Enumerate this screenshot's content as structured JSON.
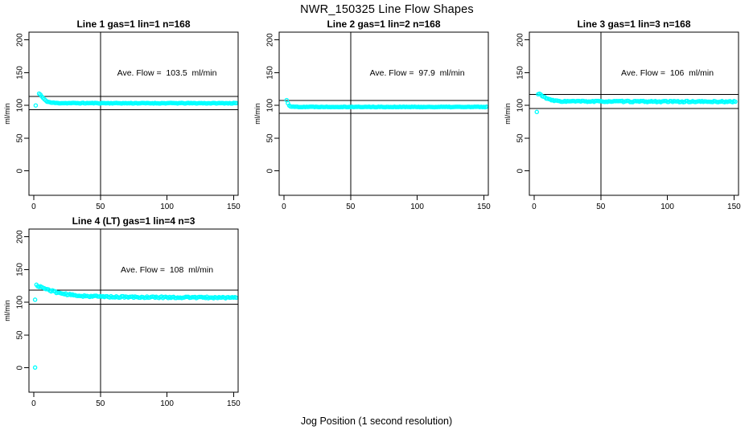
{
  "page": {
    "title": "NWR_150325  Line Flow Shapes",
    "xlabel": "Jog Position (1 second resolution)",
    "background": "#ffffff"
  },
  "style": {
    "point_color": "#00ffff",
    "axis_color": "#000000",
    "text_color": "#000000"
  },
  "chart_data": [
    {
      "type": "scatter",
      "title": "Line 1 gas=1 lin=1 n=168",
      "annotation": "Ave. Flow =  103.5  ml/min",
      "ave_flow_ml_min": 103.5,
      "n": 168,
      "ylabel": "ml/min",
      "marker": "open-circle",
      "color": "#00ffff",
      "xticks": [
        0,
        50,
        100,
        150
      ],
      "yticks": [
        0,
        50,
        100,
        150,
        200
      ],
      "xlim": [
        -3.6,
        153.4
      ],
      "ylim": [
        -37.2,
        211.9
      ],
      "grid": false,
      "legend": false,
      "vline_x": 50,
      "hlines_y": [
        113.9,
        93.2
      ],
      "annotation_pos": {
        "x": 100,
        "y": 150
      },
      "trace": {
        "x_start": 4,
        "x_end": 152,
        "step": 1,
        "noise": 0.5,
        "seed": 11,
        "breakpoints": [
          [
            4,
            118
          ],
          [
            5,
            116.5
          ],
          [
            6,
            113.5
          ],
          [
            8,
            109
          ],
          [
            10,
            106
          ],
          [
            13,
            104.3
          ],
          [
            18,
            103.6
          ],
          [
            80,
            103.4
          ],
          [
            152,
            103.4
          ]
        ]
      },
      "isolated_points": [
        [
          1.5,
          100
        ]
      ]
    },
    {
      "type": "scatter",
      "title": "Line 2 gas=1 lin=2 n=168",
      "annotation": "Ave. Flow =  97.9  ml/min",
      "ave_flow_ml_min": 97.9,
      "n": 168,
      "ylabel": "ml/min",
      "marker": "open-circle",
      "color": "#00ffff",
      "xticks": [
        0,
        50,
        100,
        150
      ],
      "yticks": [
        0,
        50,
        100,
        150,
        200
      ],
      "xlim": [
        -3.6,
        153.4
      ],
      "ylim": [
        -37.2,
        211.9
      ],
      "grid": false,
      "legend": false,
      "vline_x": 50,
      "hlines_y": [
        107.7,
        88.1
      ],
      "annotation_pos": {
        "x": 100,
        "y": 150
      },
      "trace": {
        "x_start": 2,
        "x_end": 152,
        "step": 1,
        "noise": 0.45,
        "seed": 22,
        "breakpoints": [
          [
            2,
            108
          ],
          [
            3,
            103.5
          ],
          [
            4,
            100
          ],
          [
            5,
            98.6
          ],
          [
            7,
            97.9
          ],
          [
            80,
            97.7
          ],
          [
            152,
            97.7
          ]
        ]
      },
      "isolated_points": []
    },
    {
      "type": "scatter",
      "title": "Line 3 gas=1 lin=3 n=168",
      "annotation": "Ave. Flow =  106  ml/min",
      "ave_flow_ml_min": 106,
      "n": 168,
      "ylabel": "ml/min",
      "marker": "open-circle",
      "color": "#00ffff",
      "xticks": [
        0,
        50,
        100,
        150
      ],
      "yticks": [
        0,
        50,
        100,
        150,
        200
      ],
      "xlim": [
        -3.6,
        153.4
      ],
      "ylim": [
        -37.2,
        211.9
      ],
      "grid": false,
      "legend": false,
      "vline_x": 50,
      "hlines_y": [
        116.6,
        95.4
      ],
      "annotation_pos": {
        "x": 100,
        "y": 150
      },
      "trace": {
        "x_start": 3,
        "x_end": 151,
        "step": 1,
        "noise": 0.9,
        "seed": 33,
        "breakpoints": [
          [
            3,
            117
          ],
          [
            4,
            117.5
          ],
          [
            5,
            116.5
          ],
          [
            7,
            113.5
          ],
          [
            9,
            111
          ],
          [
            12,
            108.5
          ],
          [
            16,
            107
          ],
          [
            22,
            106.3
          ],
          [
            80,
            106
          ],
          [
            151,
            105.8
          ]
        ]
      },
      "isolated_points": [
        [
          2,
          90
        ]
      ]
    },
    {
      "type": "scatter",
      "title": "Line 4 (LT) gas=1 lin=4 n=3",
      "annotation": "Ave. Flow =  108  ml/min",
      "ave_flow_ml_min": 108,
      "n": 3,
      "ylabel": "ml/min",
      "marker": "open-circle",
      "color": "#00ffff",
      "xticks": [
        0,
        50,
        100,
        150
      ],
      "yticks": [
        0,
        50,
        100,
        150,
        200
      ],
      "xlim": [
        -3.6,
        153.4
      ],
      "ylim": [
        -37.2,
        211.9
      ],
      "grid": false,
      "legend": false,
      "vline_x": 50,
      "hlines_y": [
        118.8,
        97.2
      ],
      "annotation_pos": {
        "x": 100,
        "y": 150
      },
      "trace": {
        "x_start": 2,
        "x_end": 152,
        "step": 1,
        "noise": 1.2,
        "seed": 44,
        "breakpoints": [
          [
            2,
            126
          ],
          [
            4,
            124.5
          ],
          [
            6,
            123
          ],
          [
            9,
            120.5
          ],
          [
            12,
            118.5
          ],
          [
            16,
            116
          ],
          [
            21,
            113.5
          ],
          [
            27,
            111.5
          ],
          [
            35,
            110
          ],
          [
            50,
            108.8
          ],
          [
            70,
            108
          ],
          [
            110,
            107.6
          ],
          [
            152,
            107.2
          ]
        ]
      },
      "isolated_points": [
        [
          1,
          0.5
        ],
        [
          1,
          104
        ]
      ]
    }
  ]
}
